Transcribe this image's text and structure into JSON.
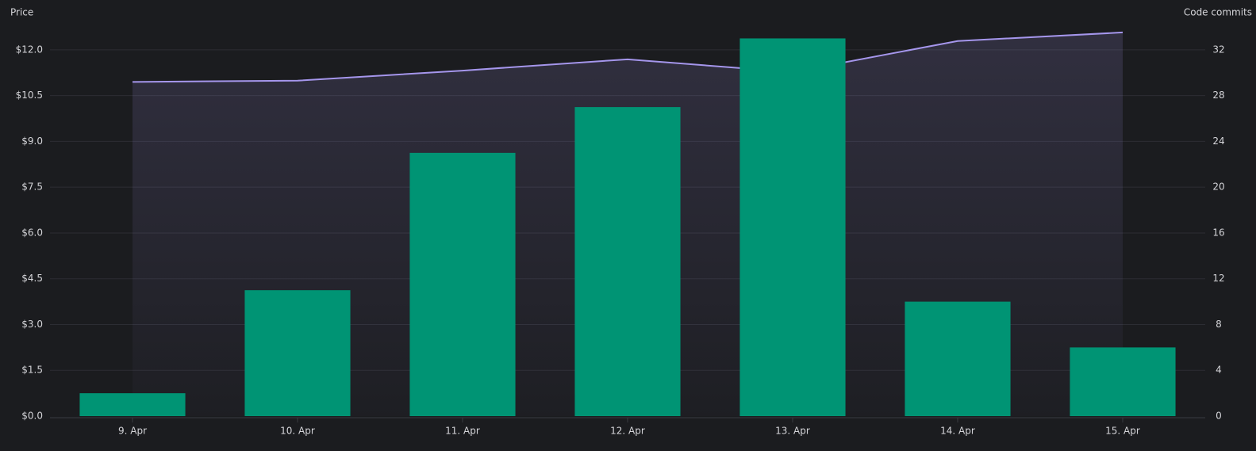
{
  "chart_data": {
    "type": "bar-line",
    "y_label": "Price",
    "y2_label": "Code commits",
    "categories": [
      "9. Apr",
      "10. Apr",
      "11. Apr",
      "12. Apr",
      "13. Apr",
      "14. Apr",
      "15. Apr"
    ],
    "series": [
      {
        "name": "Code commits",
        "type": "bar",
        "axis": "y2",
        "color": "#009474",
        "values": [
          2,
          11,
          23,
          27,
          33,
          10,
          6
        ]
      },
      {
        "name": "Price",
        "type": "area",
        "axis": "y",
        "color": "#a596ec",
        "values": [
          10.95,
          10.99,
          11.32,
          11.69,
          11.27,
          12.29,
          12.57
        ]
      }
    ],
    "ylim": [
      0,
      12.75
    ],
    "yticks": [
      {
        "value": 0,
        "label": "$0.0"
      },
      {
        "value": 1.5,
        "label": "$1.5"
      },
      {
        "value": 3,
        "label": "$3.0"
      },
      {
        "value": 4.5,
        "label": "$4.5"
      },
      {
        "value": 6,
        "label": "$6.0"
      },
      {
        "value": 7.5,
        "label": "$7.5"
      },
      {
        "value": 9,
        "label": "$9.0"
      },
      {
        "value": 10.5,
        "label": "$10.5"
      },
      {
        "value": 12,
        "label": "$12.0"
      }
    ],
    "y2lim": [
      0,
      34
    ],
    "y2ticks": [
      0,
      4,
      8,
      12,
      16,
      20,
      24,
      28,
      32
    ],
    "grid": true
  }
}
